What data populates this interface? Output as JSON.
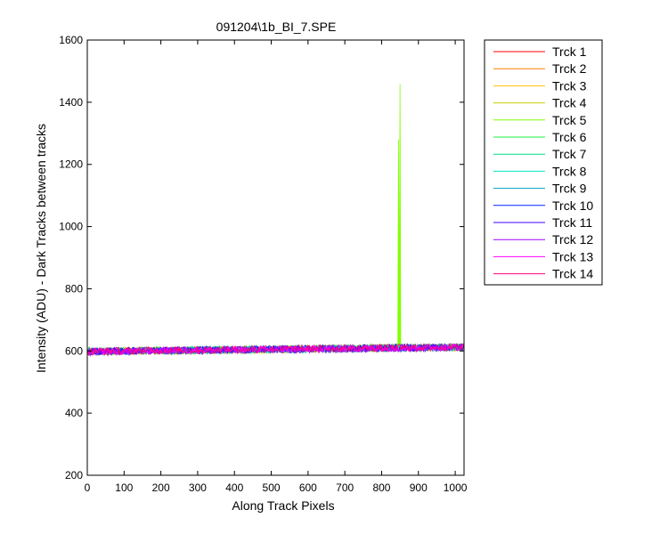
{
  "chart_data": {
    "type": "line",
    "title": "091204\\1b_BI_7.SPE",
    "xlabel": "Along Track Pixels",
    "ylabel": "Intensity (ADU) - Dark Tracks between tracks",
    "xlim": [
      0,
      1024
    ],
    "ylim": [
      200,
      1600
    ],
    "xticks": [
      0,
      100,
      200,
      300,
      400,
      500,
      600,
      700,
      800,
      900,
      1000
    ],
    "yticks": [
      200,
      400,
      600,
      800,
      1000,
      1200,
      1400,
      1600
    ],
    "grid": false,
    "legend_position": "outside-top-right",
    "baseline_trend": {
      "x": [
        0,
        1024
      ],
      "y": [
        598,
        612
      ]
    },
    "noise_amplitude": 12,
    "spikes": [
      {
        "series": "Trck 5",
        "x": 846,
        "y": 1280
      },
      {
        "series": "Trck 5",
        "x": 850,
        "y": 1458
      }
    ],
    "series": [
      {
        "name": "Trck 1",
        "color": "#ff0000",
        "baseline_offset": 0
      },
      {
        "name": "Trck 2",
        "color": "#ff8000",
        "baseline_offset": 1
      },
      {
        "name": "Trck 3",
        "color": "#ffbf00",
        "baseline_offset": -1
      },
      {
        "name": "Trck 4",
        "color": "#c8d000",
        "baseline_offset": 0
      },
      {
        "name": "Trck 5",
        "color": "#80ff00",
        "baseline_offset": 0
      },
      {
        "name": "Trck 6",
        "color": "#20f040",
        "baseline_offset": 1
      },
      {
        "name": "Trck 7",
        "color": "#00e080",
        "baseline_offset": 0
      },
      {
        "name": "Trck 8",
        "color": "#00e8c8",
        "baseline_offset": -1
      },
      {
        "name": "Trck 9",
        "color": "#00a0c0",
        "baseline_offset": 0
      },
      {
        "name": "Trck 10",
        "color": "#0020ff",
        "baseline_offset": 1
      },
      {
        "name": "Trck 11",
        "color": "#4000ff",
        "baseline_offset": 0
      },
      {
        "name": "Trck 12",
        "color": "#a000ff",
        "baseline_offset": -1
      },
      {
        "name": "Trck 13",
        "color": "#ff00ff",
        "baseline_offset": 0
      },
      {
        "name": "Trck 14",
        "color": "#ff0080",
        "baseline_offset": 1
      }
    ]
  }
}
